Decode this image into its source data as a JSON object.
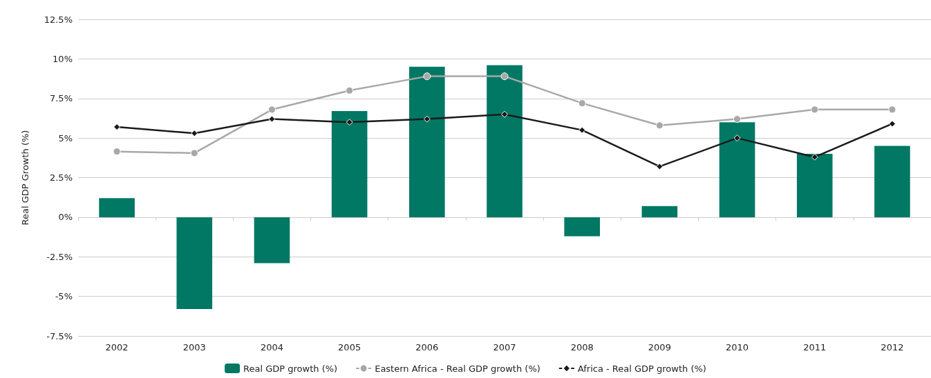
{
  "chart_data": {
    "type": "bar",
    "ylabel": "Real GDP Growth (%)",
    "categories": [
      "2002",
      "2003",
      "2004",
      "2005",
      "2006",
      "2007",
      "2008",
      "2009",
      "2010",
      "2011",
      "2012"
    ],
    "series": [
      {
        "name": "Real GDP growth (%)",
        "color": "#007864",
        "values": [
          1.2,
          -5.8,
          -2.9,
          6.7,
          9.5,
          9.6,
          -1.2,
          0.7,
          6.0,
          4.0,
          4.5
        ]
      },
      {
        "name": "Eastern Africa - Real GDP growth (%)",
        "type": "line",
        "marker": "circle",
        "color": "#a8a8a8",
        "values": [
          4.15,
          4.05,
          6.8,
          8.0,
          8.9,
          8.9,
          7.2,
          5.8,
          6.2,
          6.8,
          6.8
        ]
      },
      {
        "name": "Africa - Real GDP growth (%)",
        "type": "line",
        "marker": "diamond",
        "color": "#1a1a1a",
        "values": [
          5.7,
          5.3,
          6.2,
          6.0,
          6.2,
          6.5,
          5.5,
          3.2,
          5.0,
          3.8,
          5.9
        ]
      }
    ],
    "ylim": [
      -7.5,
      12.5
    ],
    "yticks": [
      {
        "value": -7.5,
        "label": "-7.5%"
      },
      {
        "value": -5,
        "label": "-5%"
      },
      {
        "value": -2.5,
        "label": "-2.5%"
      },
      {
        "value": 0,
        "label": "0%"
      },
      {
        "value": 2.5,
        "label": "2.5%"
      },
      {
        "value": 5,
        "label": "5%"
      },
      {
        "value": 7.5,
        "label": "7.5%"
      },
      {
        "value": 10,
        "label": "10%"
      },
      {
        "value": 12.5,
        "label": "12.5%"
      }
    ],
    "grid": "y",
    "legend": "bottom",
    "line_style": "solid"
  }
}
